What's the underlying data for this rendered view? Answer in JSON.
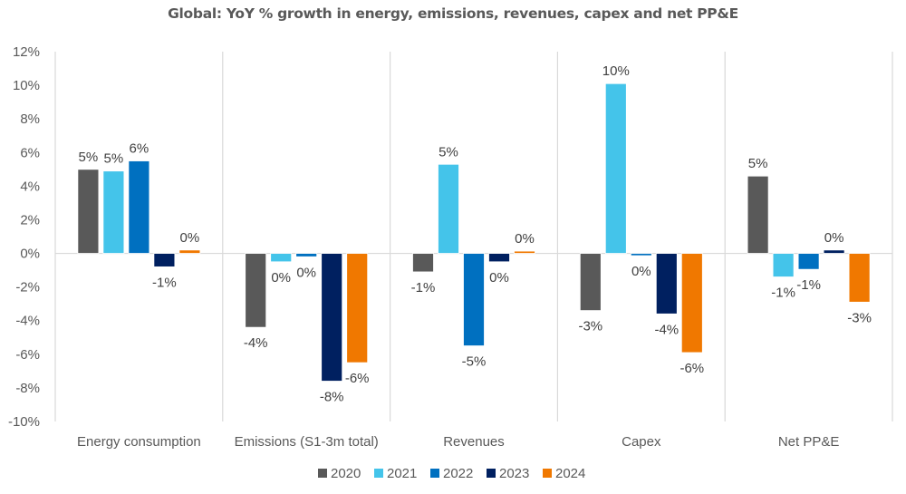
{
  "chart_data": {
    "type": "bar",
    "title": "Global: YoY % growth in energy, emissions, revenues, capex and net PP&E",
    "xlabel": "",
    "ylabel": "",
    "ylim": [
      -10,
      12
    ],
    "ytick_step": 2,
    "ytick_labels": [
      "12%",
      "10%",
      "8%",
      "6%",
      "4%",
      "2%",
      "0%",
      "-2%",
      "-4%",
      "-6%",
      "-8%",
      "-10%"
    ],
    "grid": false,
    "category_separators": true,
    "legend_position": "bottom",
    "categories": [
      "Energy consumption",
      "Emissions (S1-3m total)",
      "Revenues",
      "Capex",
      "Net PP&E"
    ],
    "series": [
      {
        "name": "2020",
        "color": "#595959",
        "values": [
          5.0,
          -4.4,
          -1.1,
          -3.4,
          4.6
        ],
        "labels": [
          "5%",
          "-4%",
          "-1%",
          "-3%",
          "5%"
        ]
      },
      {
        "name": "2021",
        "color": "#44C4EA",
        "values": [
          4.9,
          -0.5,
          5.3,
          10.1,
          -1.4
        ],
        "labels": [
          "5%",
          "0%",
          "5%",
          "10%",
          "-1%"
        ]
      },
      {
        "name": "2022",
        "color": "#0070C0",
        "values": [
          5.5,
          -0.2,
          -5.5,
          -0.1,
          -0.95
        ],
        "labels": [
          "6%",
          "0%",
          "-5%",
          "0%",
          "-1%"
        ]
      },
      {
        "name": "2023",
        "color": "#002060",
        "values": [
          -0.8,
          -7.6,
          -0.5,
          -3.6,
          0.2
        ],
        "labels": [
          "-1%",
          "-8%",
          "0%",
          "-4%",
          "0%"
        ]
      },
      {
        "name": "2024",
        "color": "#F07800",
        "values": [
          0.2,
          -6.5,
          0.05,
          -5.9,
          -2.9
        ],
        "labels": [
          "0%",
          "-6%",
          "0%",
          "-6%",
          "-3%"
        ]
      }
    ]
  }
}
